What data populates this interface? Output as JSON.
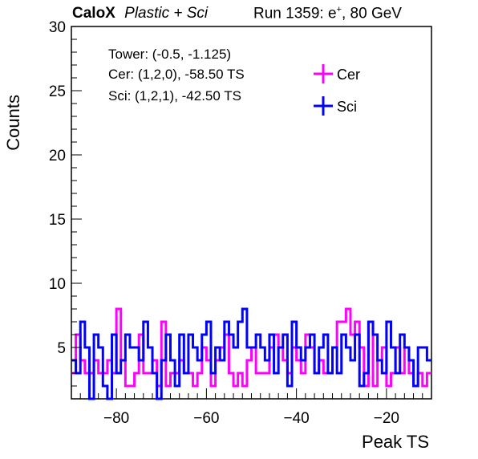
{
  "header": {
    "brand": "CaloX",
    "subtitle": "Plastic + Sci",
    "run_prefix": "Run 1359: e",
    "run_superscript": "+",
    "run_suffix": ", 80 GeV"
  },
  "annotations": {
    "tower": "Tower: (-0.5, -1.125)",
    "cer": "Cer: (1,2,0), -58.50 TS",
    "sci": "Sci: (1,2,1), -42.50 TS"
  },
  "chart_data": {
    "type": "histogram",
    "xlabel": "Peak TS",
    "ylabel": "Counts",
    "xlim": [
      -90,
      -10
    ],
    "ylim": [
      1,
      30
    ],
    "x_ticks": [
      -80,
      -60,
      -40,
      -20
    ],
    "y_ticks": [
      5,
      10,
      15,
      20,
      25,
      30
    ],
    "bin_width": 1,
    "bin_start": -90,
    "grid": false,
    "legend_position": "top-right",
    "series": [
      {
        "name": "Cer",
        "color": "#ff00ff",
        "values": [
          3,
          6,
          4,
          3,
          3,
          4,
          3,
          3,
          4,
          3,
          8,
          4,
          2,
          2,
          3,
          6,
          3,
          3,
          4,
          2,
          7,
          2,
          3,
          3,
          4,
          3,
          3,
          2,
          3,
          5,
          4,
          2,
          4,
          5,
          6,
          3,
          2,
          3,
          2,
          4,
          5,
          3,
          3,
          3,
          5,
          6,
          5,
          4,
          3,
          5,
          4,
          3,
          6,
          5,
          3,
          4,
          3,
          3,
          5,
          7,
          7,
          8,
          6,
          7,
          5,
          2,
          7,
          2,
          4,
          5,
          2,
          3,
          5,
          3,
          5,
          3,
          2,
          3,
          2,
          3
        ]
      },
      {
        "name": "Sci",
        "color": "#0000ff",
        "values": [
          4,
          3,
          7,
          5,
          1,
          6,
          5,
          2,
          1,
          6,
          3,
          4,
          6,
          5,
          5,
          4,
          7,
          5,
          3,
          1,
          4,
          6,
          4,
          2,
          6,
          3,
          6,
          5,
          4,
          6,
          7,
          3,
          5,
          4,
          7,
          6,
          5,
          7,
          8,
          5,
          5,
          6,
          5,
          4,
          6,
          3,
          5,
          6,
          2,
          7,
          5,
          4,
          5,
          6,
          3,
          5,
          6,
          3,
          5,
          3,
          6,
          5,
          4,
          6,
          2,
          3,
          7,
          6,
          4,
          3,
          7,
          5,
          3,
          6,
          5,
          4,
          2,
          5,
          5,
          4
        ]
      }
    ]
  }
}
